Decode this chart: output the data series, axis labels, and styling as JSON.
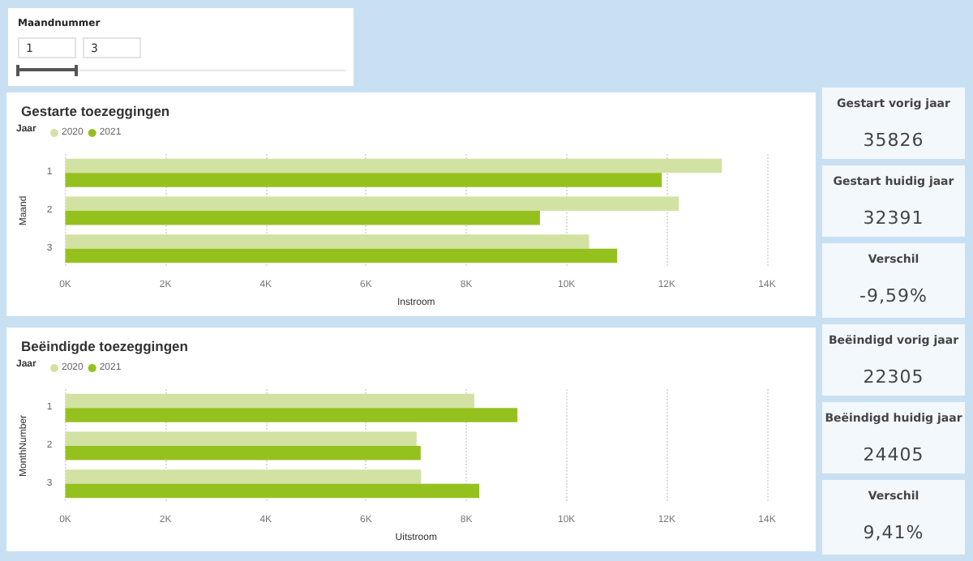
{
  "chart_data": [
    {
      "type": "other",
      "title": "Maandnummer",
      "annotations": [
        "1",
        "3"
      ]
    },
    {
      "type": "bar",
      "orientation": "horizontal",
      "title": "Gestarte toezeggingen",
      "legend_title": "Jaar",
      "legend": "top left",
      "xlabel": "Instroom",
      "ylabel": "Maand",
      "categories": [
        "1",
        "2",
        "3"
      ],
      "series": [
        {
          "name": "2020",
          "color": "#d2e2a2",
          "values": [
            13100,
            12240,
            10450
          ]
        },
        {
          "name": "2021",
          "color": "#95c11f",
          "values": [
            11900,
            9470,
            11010
          ]
        }
      ],
      "xlim": [
        0,
        14000
      ],
      "xticks": [
        {
          "value": 0,
          "label": "0K"
        },
        {
          "value": 2000,
          "label": "2K"
        },
        {
          "value": 4000,
          "label": "4K"
        },
        {
          "value": 6000,
          "label": "6K"
        },
        {
          "value": 8000,
          "label": "8K"
        },
        {
          "value": 10000,
          "label": "10K"
        },
        {
          "value": 12000,
          "label": "12K"
        },
        {
          "value": 14000,
          "label": "14K"
        }
      ],
      "grid": "x"
    },
    {
      "type": "other",
      "title": "Gestart vorig jaar",
      "annotations": [
        "35826"
      ]
    },
    {
      "type": "other",
      "title": "Gestart huidig jaar",
      "annotations": [
        "32391"
      ]
    },
    {
      "type": "other",
      "title": "Verschil",
      "annotations": [
        "-9,59%"
      ]
    },
    {
      "type": "bar",
      "orientation": "horizontal",
      "title": "Beëindigde toezeggingen",
      "legend_title": "Jaar",
      "legend": "top left",
      "xlabel": "Uitstroom",
      "ylabel": "MonthNumber",
      "categories": [
        "1",
        "2",
        "3"
      ],
      "series": [
        {
          "name": "2020",
          "color": "#d2e2a2",
          "values": [
            8160,
            7010,
            7100
          ]
        },
        {
          "name": "2021",
          "color": "#95c11f",
          "values": [
            9020,
            7090,
            8260
          ]
        }
      ],
      "xlim": [
        0,
        14000
      ],
      "xticks": [
        {
          "value": 0,
          "label": "0K"
        },
        {
          "value": 2000,
          "label": "2K"
        },
        {
          "value": 4000,
          "label": "4K"
        },
        {
          "value": 6000,
          "label": "6K"
        },
        {
          "value": 8000,
          "label": "8K"
        },
        {
          "value": 10000,
          "label": "10K"
        },
        {
          "value": 12000,
          "label": "12K"
        },
        {
          "value": 14000,
          "label": "14K"
        }
      ],
      "grid": "x"
    },
    {
      "type": "other",
      "title": "Beëindigd vorig jaar",
      "annotations": [
        "22305"
      ]
    },
    {
      "type": "other",
      "title": "Beëindigd huidig jaar",
      "annotations": [
        "24405"
      ]
    },
    {
      "type": "other",
      "title": "Verschil",
      "annotations": [
        "9,41%"
      ]
    }
  ]
}
